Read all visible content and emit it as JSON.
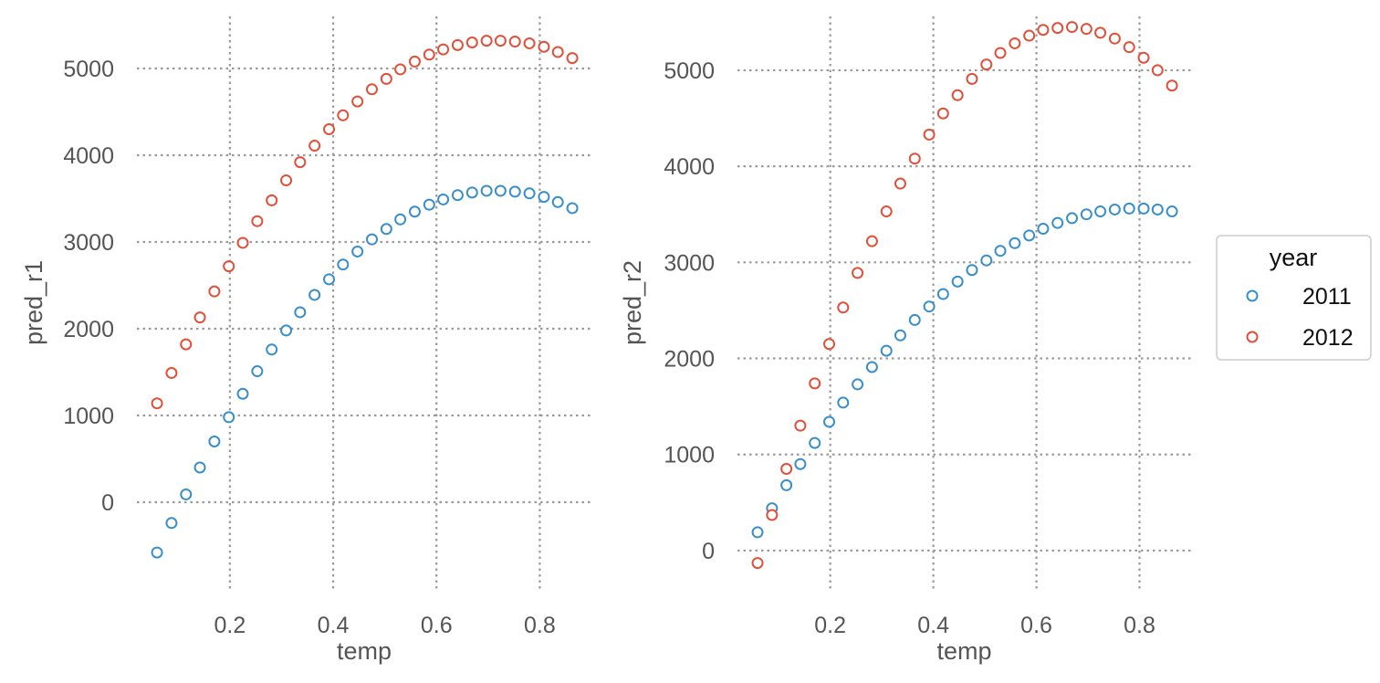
{
  "chart_data": [
    {
      "type": "scatter",
      "title": "",
      "xlabel": "temp",
      "ylabel": "pred_r1",
      "xlim": [
        0.02,
        0.9
      ],
      "ylim": [
        -1000,
        5600
      ],
      "xticks": [
        0.2,
        0.4,
        0.6,
        0.8
      ],
      "xtick_labels": [
        "0.2",
        "0.4",
        "0.6",
        "0.8"
      ],
      "yticks": [
        0,
        1000,
        2000,
        3000,
        4000,
        5000
      ],
      "ytick_labels": [
        "0",
        "1000",
        "2000",
        "3000",
        "4000",
        "5000"
      ],
      "grid": true,
      "x": [
        0.059,
        0.087,
        0.115,
        0.142,
        0.17,
        0.198,
        0.225,
        0.253,
        0.281,
        0.309,
        0.336,
        0.364,
        0.392,
        0.419,
        0.447,
        0.475,
        0.503,
        0.53,
        0.558,
        0.586,
        0.613,
        0.641,
        0.669,
        0.697,
        0.724,
        0.752,
        0.78,
        0.808,
        0.835,
        0.863
      ],
      "series": [
        {
          "name": "2011",
          "color": "#3a8fc9",
          "values": [
            -580,
            -240,
            90,
            400,
            700,
            980,
            1250,
            1510,
            1760,
            1980,
            2190,
            2390,
            2570,
            2740,
            2890,
            3030,
            3150,
            3260,
            3350,
            3430,
            3490,
            3540,
            3570,
            3590,
            3590,
            3580,
            3560,
            3520,
            3460,
            3390
          ]
        },
        {
          "name": "2012",
          "color": "#e0503a",
          "values": [
            1140,
            1490,
            1820,
            2130,
            2430,
            2720,
            2990,
            3240,
            3480,
            3710,
            3920,
            4110,
            4300,
            4460,
            4620,
            4760,
            4880,
            4990,
            5080,
            5160,
            5220,
            5270,
            5300,
            5320,
            5320,
            5310,
            5290,
            5250,
            5190,
            5120
          ]
        }
      ]
    },
    {
      "type": "scatter",
      "title": "",
      "xlabel": "temp",
      "ylabel": "pred_r2",
      "xlim": [
        0.02,
        0.9
      ],
      "ylim": [
        -400,
        5560
      ],
      "xticks": [
        0.2,
        0.4,
        0.6,
        0.8
      ],
      "xtick_labels": [
        "0.2",
        "0.4",
        "0.6",
        "0.8"
      ],
      "yticks": [
        0,
        1000,
        2000,
        3000,
        4000,
        5000
      ],
      "ytick_labels": [
        "0",
        "1000",
        "2000",
        "3000",
        "4000",
        "5000"
      ],
      "grid": true,
      "x": [
        0.059,
        0.087,
        0.115,
        0.142,
        0.17,
        0.198,
        0.225,
        0.253,
        0.281,
        0.309,
        0.336,
        0.364,
        0.392,
        0.419,
        0.447,
        0.475,
        0.503,
        0.53,
        0.558,
        0.586,
        0.613,
        0.641,
        0.669,
        0.697,
        0.724,
        0.752,
        0.78,
        0.808,
        0.835,
        0.863
      ],
      "series": [
        {
          "name": "2011",
          "color": "#3a8fc9",
          "values": [
            190,
            440,
            680,
            900,
            1120,
            1340,
            1540,
            1730,
            1910,
            2080,
            2240,
            2400,
            2540,
            2670,
            2800,
            2920,
            3020,
            3120,
            3200,
            3280,
            3350,
            3410,
            3460,
            3500,
            3530,
            3550,
            3560,
            3560,
            3550,
            3530
          ]
        },
        {
          "name": "2012",
          "color": "#e0503a",
          "values": [
            -130,
            370,
            850,
            1300,
            1740,
            2150,
            2530,
            2890,
            3220,
            3530,
            3820,
            4080,
            4330,
            4550,
            4740,
            4910,
            5060,
            5180,
            5280,
            5360,
            5420,
            5440,
            5450,
            5430,
            5390,
            5330,
            5240,
            5130,
            5000,
            4840
          ]
        }
      ]
    }
  ],
  "legend": {
    "title": "year",
    "position": "right",
    "entries": [
      {
        "label": "2011",
        "color": "#3a8fc9"
      },
      {
        "label": "2012",
        "color": "#e0503a"
      }
    ]
  }
}
